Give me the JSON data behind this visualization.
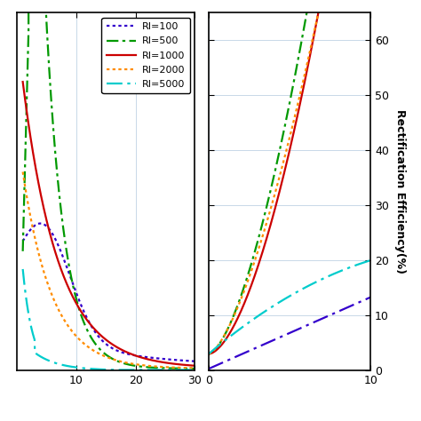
{
  "ylabel": "Rectification Efficiency(%)",
  "legend_labels": [
    "RI=100",
    "RI=500",
    "RI=1000",
    "RI=2000",
    "RI=5000"
  ],
  "colors": [
    "#3300CC",
    "#009900",
    "#CC0000",
    "#FF8C00",
    "#00CCCC"
  ],
  "left_xlim": [
    0,
    30
  ],
  "left_ylim": [
    0,
    60
  ],
  "right_xlim": [
    0,
    10
  ],
  "right_ylim": [
    0,
    65
  ],
  "right_yticks": [
    0,
    10,
    20,
    30,
    40,
    50,
    60
  ],
  "grid_color": "#C8D8E8",
  "background_color": "#FFFFFF"
}
